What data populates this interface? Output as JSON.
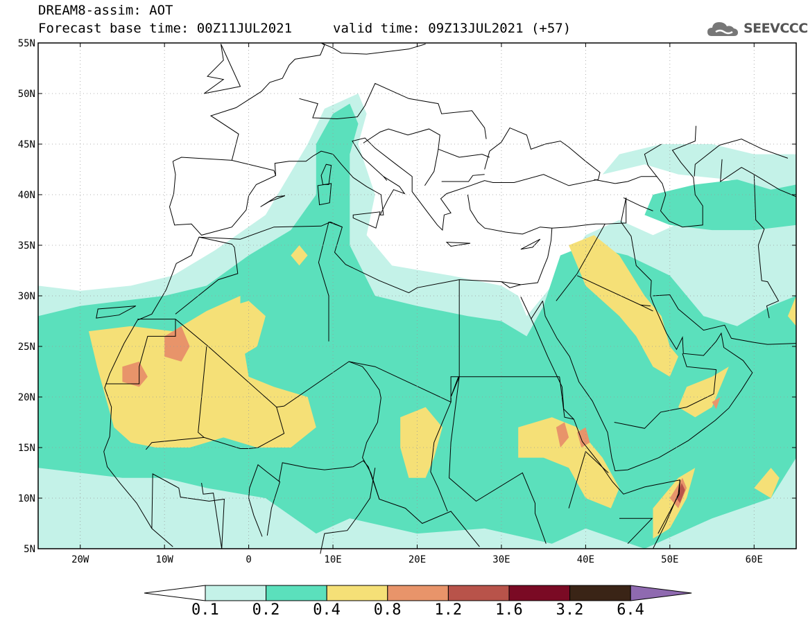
{
  "title": {
    "line1": "DREAM8-assim: AOT",
    "line2": "Forecast base time: 00Z11JUL2021",
    "valid": "valid time: 09Z13JUL2021 (+57)"
  },
  "logo": {
    "text": "SEEVCCC",
    "icon": "cloud-icon"
  },
  "map": {
    "lon_range": [
      -25,
      65
    ],
    "lat_range": [
      5,
      55
    ],
    "lat_ticks": [
      {
        "value": 55,
        "label": "55N"
      },
      {
        "value": 50,
        "label": "50N"
      },
      {
        "value": 45,
        "label": "45N"
      },
      {
        "value": 40,
        "label": "40N"
      },
      {
        "value": 35,
        "label": "35N"
      },
      {
        "value": 30,
        "label": "30N"
      },
      {
        "value": 25,
        "label": "25N"
      },
      {
        "value": 20,
        "label": "20N"
      },
      {
        "value": 15,
        "label": "15N"
      },
      {
        "value": 10,
        "label": "10N"
      },
      {
        "value": 5,
        "label": "5N"
      }
    ],
    "lon_ticks": [
      {
        "value": -20,
        "label": "20W"
      },
      {
        "value": -10,
        "label": "10W"
      },
      {
        "value": 0,
        "label": "0"
      },
      {
        "value": 10,
        "label": "10E"
      },
      {
        "value": 20,
        "label": "20E"
      },
      {
        "value": 30,
        "label": "30E"
      },
      {
        "value": 40,
        "label": "40E"
      },
      {
        "value": 50,
        "label": "50E"
      },
      {
        "value": 60,
        "label": "60E"
      }
    ],
    "grid": true
  },
  "colorbar": {
    "labels": [
      "0.1",
      "0.2",
      "0.4",
      "0.8",
      "1.2",
      "1.6",
      "3.2",
      "6.4"
    ],
    "colors": [
      "#ffffff",
      "#c4f2e8",
      "#5be0bc",
      "#f5e077",
      "#e8946a",
      "#b8534a",
      "#7a0a24",
      "#3a2416",
      "#8f6ab0"
    ]
  },
  "field_colors": {
    "c1": "#c4f2e8",
    "c2": "#5be0bc",
    "c3": "#f5e077",
    "c4": "#e8946a",
    "c5": "#b8534a"
  }
}
